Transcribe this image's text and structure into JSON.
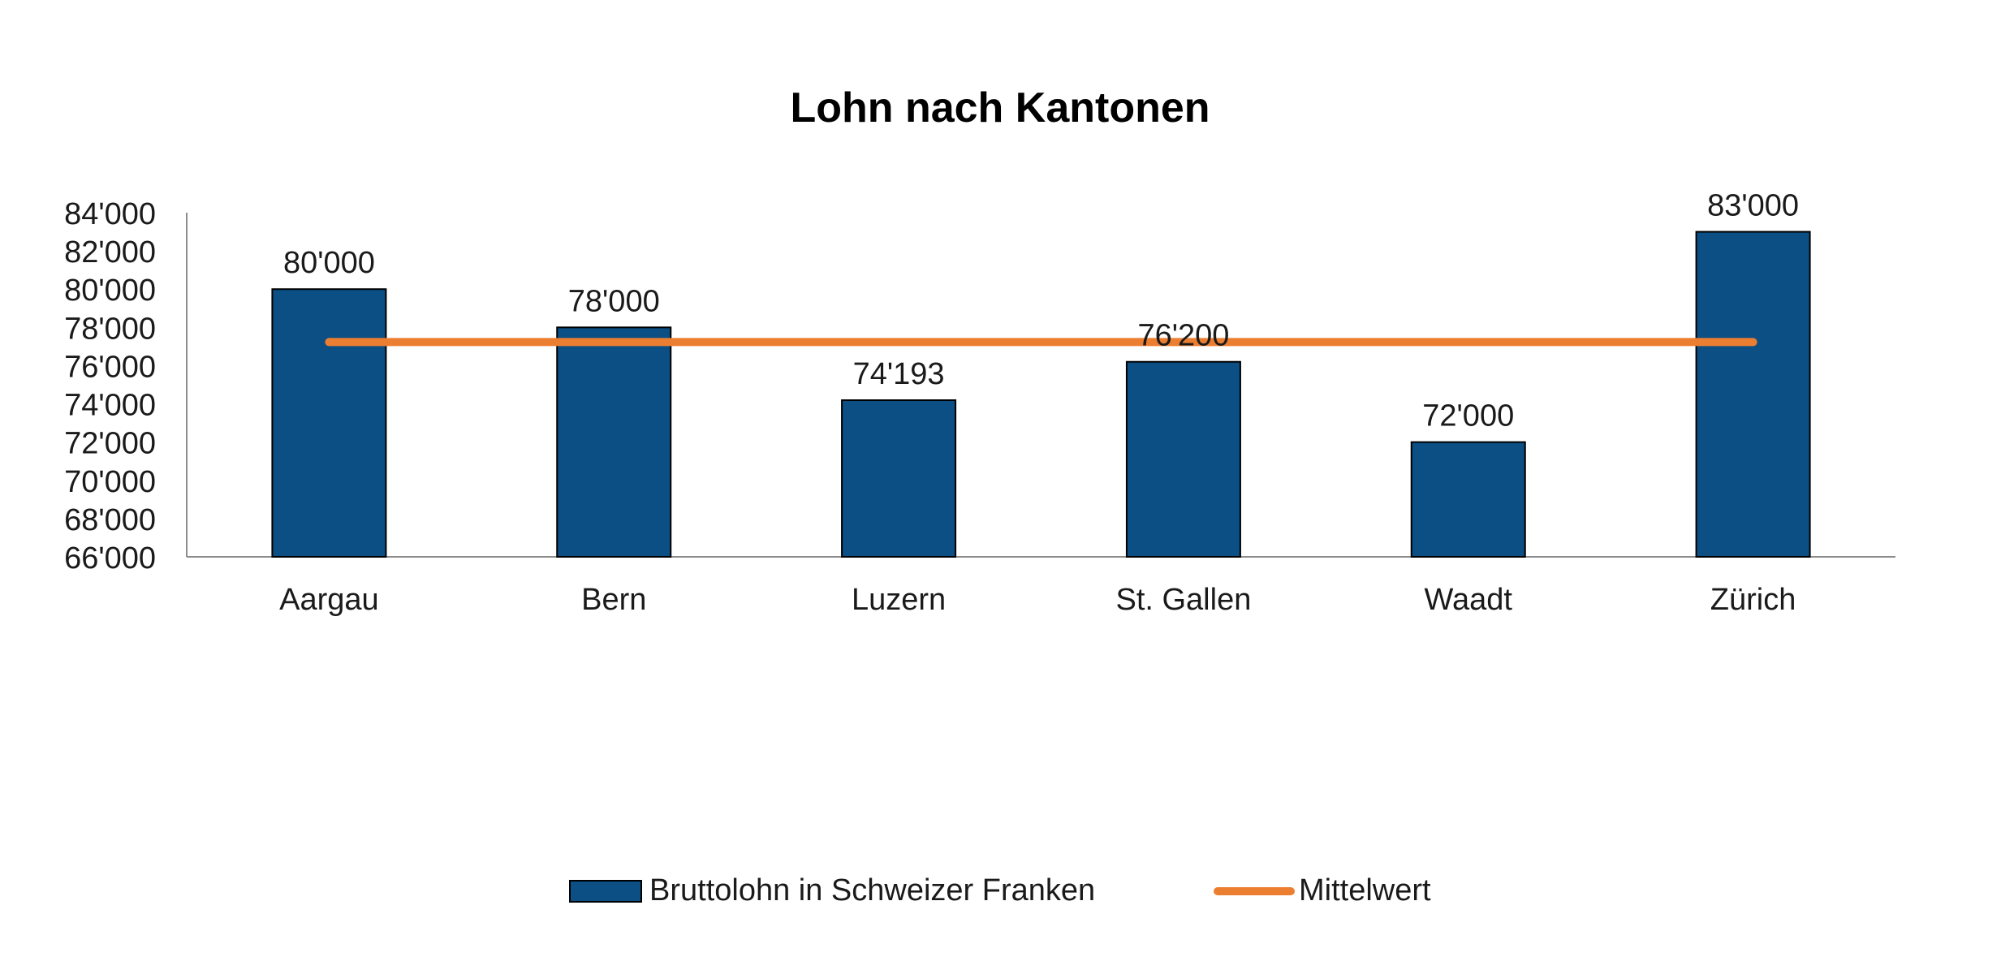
{
  "chart_data": {
    "type": "bar",
    "title": "Lohn nach Kantonen",
    "xlabel": "",
    "ylabel": "",
    "categories": [
      "Aargau",
      "Bern",
      "Luzern",
      "St. Gallen",
      "Waadt",
      "Zürich"
    ],
    "series": [
      {
        "name": "Bruttolohn in Schweizer Franken",
        "type": "bar",
        "values": [
          80000,
          78000,
          74193,
          76200,
          72000,
          83000
        ],
        "data_labels": [
          "80'000",
          "78'000",
          "74'193",
          "76'200",
          "72'000",
          "83'000"
        ],
        "color": "#0b4f84"
      },
      {
        "name": "Mittelwert",
        "type": "line",
        "values": [
          77232,
          77232,
          77232,
          77232,
          77232,
          77232
        ],
        "color": "#ec7e32"
      }
    ],
    "ylim": [
      66000,
      84000
    ],
    "y_ticks": [
      66000,
      68000,
      70000,
      72000,
      74000,
      76000,
      78000,
      80000,
      82000,
      84000
    ],
    "y_tick_labels": [
      "66'000",
      "68'000",
      "70'000",
      "72'000",
      "74'000",
      "76'000",
      "78'000",
      "80'000",
      "82'000",
      "84'000"
    ],
    "grid": false,
    "legend_position": "bottom"
  }
}
